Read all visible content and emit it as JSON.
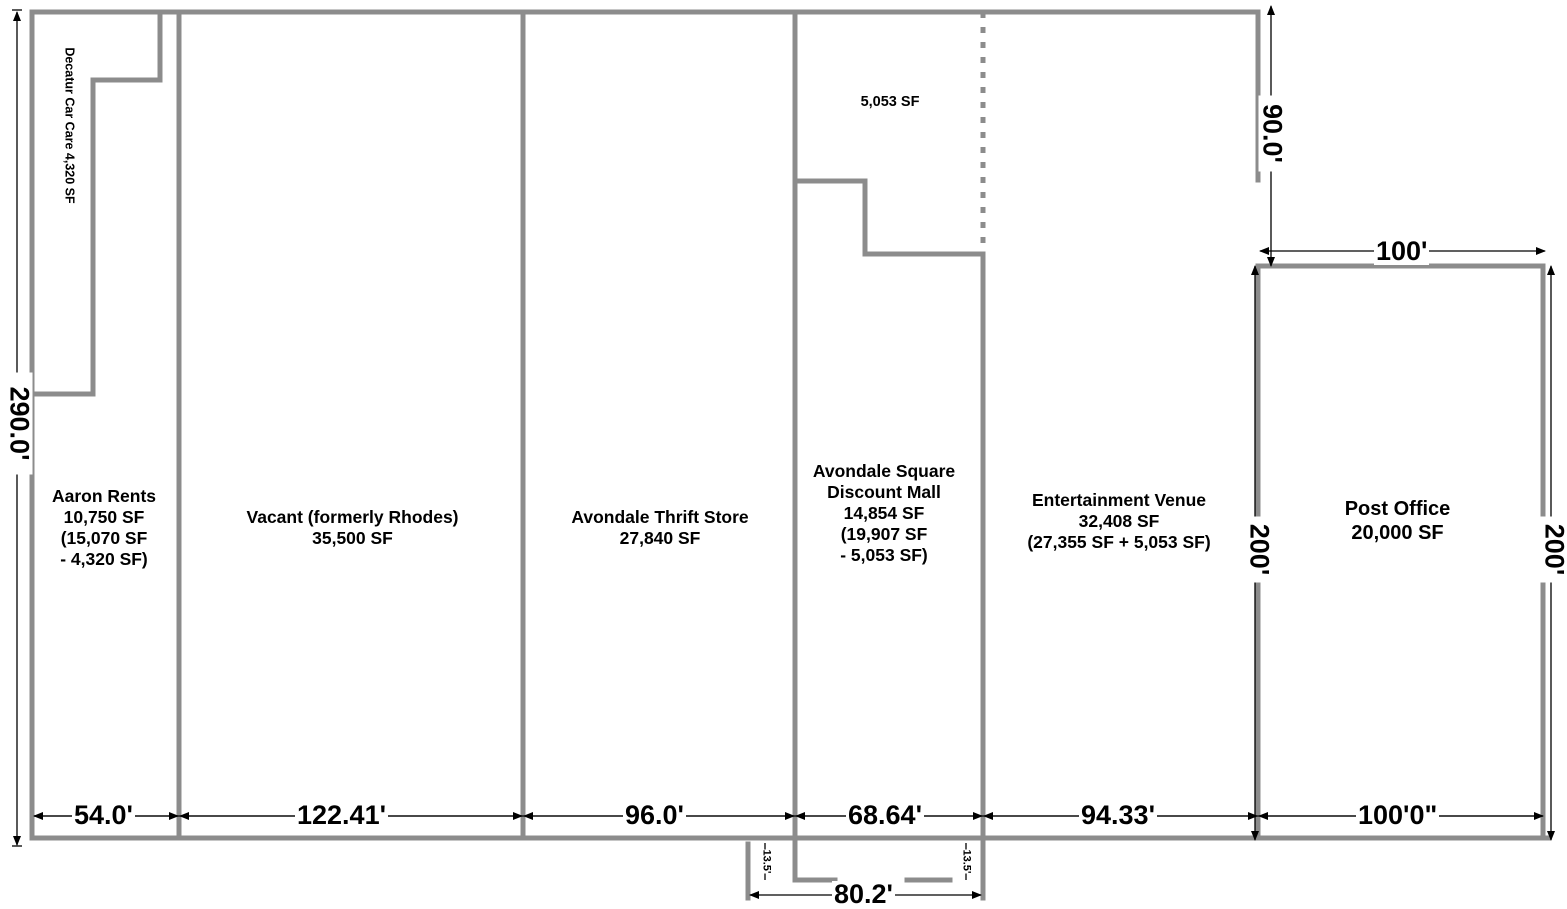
{
  "tenants": {
    "decatur": "Decatur Car Care 4,320 SF",
    "aaron": [
      "Aaron Rents",
      "10,750 SF",
      "(15,070 SF",
      "- 4,320 SF)"
    ],
    "vacant": [
      "Vacant (formerly Rhodes)",
      "35,500 SF"
    ],
    "thrift": [
      "Avondale Thrift Store",
      "27,840 SF"
    ],
    "mall": [
      "Avondale Square",
      "Discount Mall",
      "14,854 SF",
      "(19,907 SF",
      "- 5,053 SF)"
    ],
    "mall_upper": "5,053 SF",
    "venue": [
      "Entertainment Venue",
      "32,408 SF",
      "(27,355 SF + 5,053 SF)"
    ],
    "post": [
      "Post Office",
      "20,000 SF"
    ]
  },
  "dimensions": {
    "total_depth": "290.0'",
    "upper_right": "90.0'",
    "post_width_top": "100'",
    "post_depth_left": "200'",
    "post_depth_right": "200'",
    "widths": [
      "54.0'",
      "122.41'",
      "96.0'",
      "68.64'",
      "94.33'",
      "100'0\""
    ],
    "entrance_width": "80.2'",
    "entrance_left": "13.5'",
    "entrance_right": "13.5'"
  }
}
